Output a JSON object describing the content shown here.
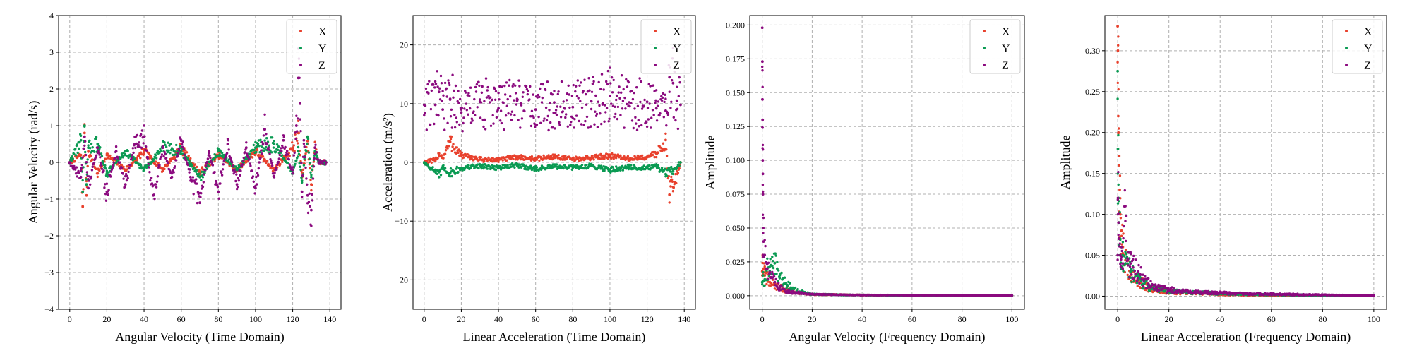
{
  "colors": {
    "X": "#e8412d",
    "Y": "#0a9a52",
    "Z": "#8b0a7f"
  },
  "chart_data": [
    {
      "type": "scatter",
      "xlabel": "Angular Velocity (Time Domain)",
      "ylabel": "Angular Velocity (rad/s)",
      "xlim": [
        -6,
        146
      ],
      "ylim": [
        -4,
        4
      ],
      "xticks": [
        0,
        20,
        40,
        60,
        80,
        100,
        120,
        140
      ],
      "xtick_labels": [
        "0",
        "20",
        "40",
        "60",
        "80",
        "100",
        "120",
        "140"
      ],
      "yticks": [
        -4,
        -3,
        -2,
        -1,
        0,
        1,
        2,
        3,
        4
      ],
      "ytick_labels": [
        "−4",
        "−3",
        "−2",
        "−1",
        "0",
        "1",
        "2",
        "3",
        "4"
      ],
      "grid": true,
      "legend": "top-right",
      "series": [
        {
          "name": "X",
          "color": "#e8412d",
          "x": [
            0,
            6,
            7,
            8,
            9,
            10,
            15,
            20,
            30,
            40,
            50,
            60,
            70,
            80,
            90,
            100,
            110,
            120,
            123,
            125,
            128,
            130,
            132,
            134,
            138
          ],
          "y": [
            0,
            0.2,
            -1.2,
            0.8,
            -0.9,
            0.3,
            -0.3,
            0.2,
            -0.2,
            0.3,
            -0.2,
            0.4,
            -0.3,
            0.2,
            -0.2,
            0.3,
            -0.2,
            0.4,
            0.8,
            -0.4,
            0.5,
            -0.6,
            0.4,
            0,
            0
          ]
        },
        {
          "name": "Y",
          "color": "#0a9a52",
          "x": [
            0,
            6,
            7,
            8,
            9,
            10,
            15,
            20,
            30,
            40,
            50,
            60,
            70,
            80,
            90,
            100,
            110,
            120,
            123,
            125,
            128,
            130,
            132,
            134,
            138
          ],
          "y": [
            0,
            0.6,
            -0.8,
            1.0,
            -0.6,
            0.4,
            0.5,
            -0.3,
            0.3,
            -0.2,
            0.4,
            0.3,
            -0.4,
            0.3,
            -0.2,
            0.4,
            0.5,
            -0.3,
            0.3,
            -0.5,
            0.7,
            -0.4,
            0.3,
            0,
            0
          ]
        },
        {
          "name": "Z",
          "color": "#8b0a7f",
          "x": [
            0,
            6,
            8,
            10,
            15,
            20,
            25,
            30,
            35,
            40,
            45,
            50,
            55,
            60,
            65,
            70,
            75,
            80,
            85,
            90,
            95,
            100,
            105,
            110,
            115,
            120,
            122,
            123,
            124,
            125,
            126,
            128,
            130,
            132,
            134,
            138
          ],
          "y": [
            0,
            -0.4,
            0.7,
            -0.7,
            0.4,
            -0.8,
            0.3,
            -0.6,
            0.5,
            0.7,
            -0.9,
            0.4,
            -0.4,
            0.6,
            -0.4,
            -1.1,
            0.3,
            -0.8,
            0.5,
            -0.6,
            0.4,
            -0.7,
            0.9,
            -0.4,
            0.6,
            -0.3,
            1.0,
            2.3,
            1.6,
            -0.8,
            0.6,
            -0.9,
            -1.3,
            0.4,
            0,
            0
          ]
        }
      ]
    },
    {
      "type": "scatter",
      "xlabel": "Linear Acceleration (Time Domain)",
      "ylabel": "Acceleration (m/s²)",
      "xlim": [
        -6,
        146
      ],
      "ylim": [
        -25,
        25
      ],
      "xticks": [
        0,
        20,
        40,
        60,
        80,
        100,
        120,
        140
      ],
      "xtick_labels": [
        "0",
        "20",
        "40",
        "60",
        "80",
        "100",
        "120",
        "140"
      ],
      "yticks": [
        -20,
        -10,
        0,
        10,
        20
      ],
      "ytick_labels": [
        "−20",
        "−10",
        "0",
        "10",
        "20"
      ],
      "grid": true,
      "legend": "top-right",
      "series": [
        {
          "name": "X",
          "color": "#e8412d",
          "x": [
            0,
            6,
            8,
            10,
            14,
            20,
            30,
            40,
            50,
            60,
            70,
            80,
            90,
            100,
            110,
            120,
            125,
            130,
            132,
            133,
            134,
            138
          ],
          "y": [
            0,
            0.3,
            1.5,
            0.8,
            3.5,
            1.2,
            0.5,
            0.4,
            0.9,
            0.6,
            1.0,
            0.5,
            0.8,
            1.2,
            0.6,
            0.9,
            1.5,
            3.8,
            -5.5,
            -3.0,
            -4.2,
            0
          ]
        },
        {
          "name": "Y",
          "color": "#0a9a52",
          "x": [
            0,
            6,
            8,
            10,
            14,
            20,
            30,
            40,
            50,
            60,
            70,
            80,
            90,
            100,
            110,
            120,
            125,
            130,
            132,
            134,
            138
          ],
          "y": [
            0,
            -1.5,
            -2.5,
            -0.8,
            -1.8,
            -1.0,
            -0.6,
            -0.9,
            -0.5,
            -1.1,
            -0.7,
            -0.9,
            -0.6,
            -1.2,
            -0.8,
            -1.0,
            -0.7,
            -2.0,
            -1.2,
            -1.5,
            0
          ]
        },
        {
          "name": "Z",
          "color": "#8b0a7f",
          "x": [
            0,
            6,
            8,
            10,
            14,
            20,
            30,
            40,
            50,
            60,
            70,
            80,
            90,
            100,
            110,
            120,
            125,
            130,
            132,
            134,
            136,
            138
          ],
          "y": [
            9.8,
            9.8,
            12,
            9.0,
            10.8,
            8.5,
            10.3,
            9.2,
            10.5,
            9.0,
            10.2,
            9.4,
            10.4,
            11.3,
            9.6,
            10.3,
            9.2,
            8.8,
            14.5,
            13.5,
            10.5,
            9.8
          ]
        }
      ]
    },
    {
      "type": "scatter",
      "xlabel": "Angular Velocity (Frequency Domain)",
      "ylabel": "Amplitude",
      "xlim": [
        -5,
        105
      ],
      "ylim": [
        -0.01,
        0.207
      ],
      "xticks": [
        0,
        20,
        40,
        60,
        80,
        100
      ],
      "xtick_labels": [
        "0",
        "20",
        "40",
        "60",
        "80",
        "100"
      ],
      "yticks": [
        0,
        0.025,
        0.05,
        0.075,
        0.1,
        0.125,
        0.15,
        0.175,
        0.2
      ],
      "ytick_labels": [
        "0.000",
        "0.025",
        "0.050",
        "0.075",
        "0.100",
        "0.125",
        "0.150",
        "0.175",
        "0.200"
      ],
      "grid": true,
      "legend": "top-right",
      "series": [
        {
          "name": "X",
          "color": "#e8412d",
          "x": [
            0,
            0.2,
            0.5,
            1,
            2,
            3,
            5,
            8,
            12,
            20,
            40,
            60,
            80,
            100
          ],
          "y": [
            0.018,
            0.03,
            0.02,
            0.015,
            0.012,
            0.01,
            0.008,
            0.005,
            0.003,
            0.001,
            0.0005,
            0.0003,
            0.0002,
            0.0001
          ]
        },
        {
          "name": "Y",
          "color": "#0a9a52",
          "x": [
            0,
            0.3,
            1,
            2,
            3,
            4,
            5,
            6,
            7,
            8,
            10,
            12,
            15,
            20,
            40,
            60,
            80,
            100
          ],
          "y": [
            0.01,
            0.015,
            0.012,
            0.02,
            0.018,
            0.022,
            0.024,
            0.02,
            0.015,
            0.012,
            0.008,
            0.005,
            0.003,
            0.001,
            0.0005,
            0.0003,
            0.0002,
            0.0001
          ]
        },
        {
          "name": "Z",
          "color": "#8b0a7f",
          "x": [
            0,
            0.05,
            0.1,
            0.15,
            0.2,
            0.25,
            0.3,
            0.4,
            0.5,
            1,
            1.5,
            2,
            3,
            4,
            5,
            7,
            10,
            15,
            20,
            40,
            60,
            80,
            100
          ],
          "y": [
            0.198,
            0.173,
            0.145,
            0.13,
            0.1,
            0.09,
            0.075,
            0.05,
            0.04,
            0.03,
            0.025,
            0.02,
            0.016,
            0.013,
            0.01,
            0.006,
            0.003,
            0.002,
            0.001,
            0.0005,
            0.0004,
            0.0003,
            0.0002
          ]
        }
      ]
    },
    {
      "type": "scatter",
      "xlabel": "Linear Acceleration (Frequency Domain)",
      "ylabel": "Amplitude",
      "xlim": [
        -5,
        105
      ],
      "ylim": [
        -0.016,
        0.343
      ],
      "xticks": [
        0,
        20,
        40,
        60,
        80,
        100
      ],
      "xtick_labels": [
        "0",
        "20",
        "40",
        "60",
        "80",
        "100"
      ],
      "yticks": [
        0,
        0.05,
        0.1,
        0.15,
        0.2,
        0.25,
        0.3
      ],
      "ytick_labels": [
        "0.00",
        "0.05",
        "0.10",
        "0.15",
        "0.20",
        "0.25",
        "0.30"
      ],
      "grid": true,
      "legend": "top-right",
      "series": [
        {
          "name": "X",
          "color": "#e8412d",
          "x": [
            0,
            0.1,
            0.2,
            0.3,
            0.5,
            0.8,
            1,
            1.5,
            2,
            3,
            5,
            8,
            12,
            20,
            40,
            60,
            80,
            100
          ],
          "y": [
            0.33,
            0.3,
            0.22,
            0.2,
            0.16,
            0.13,
            0.1,
            0.08,
            0.06,
            0.04,
            0.03,
            0.02,
            0.01,
            0.005,
            0.002,
            0.001,
            0.0008,
            0.0005
          ]
        },
        {
          "name": "Y",
          "color": "#0a9a52",
          "x": [
            0,
            0.1,
            0.3,
            0.5,
            1,
            1.5,
            2,
            3,
            5,
            8,
            12,
            20,
            40,
            60,
            80,
            100
          ],
          "y": [
            0.275,
            0.18,
            0.12,
            0.09,
            0.07,
            0.06,
            0.05,
            0.04,
            0.03,
            0.02,
            0.012,
            0.006,
            0.003,
            0.002,
            0.001,
            0.0005
          ]
        },
        {
          "name": "Z",
          "color": "#8b0a7f",
          "x": [
            0,
            0.1,
            0.3,
            0.5,
            1,
            1.5,
            2,
            3,
            4,
            5,
            6,
            8,
            10,
            12,
            15,
            20,
            25,
            30,
            40,
            50,
            60,
            70,
            80,
            90,
            100
          ],
          "y": [
            0.05,
            0.12,
            0.09,
            0.07,
            0.05,
            0.06,
            0.04,
            0.11,
            0.045,
            0.04,
            0.035,
            0.03,
            0.02,
            0.015,
            0.01,
            0.008,
            0.006,
            0.005,
            0.004,
            0.003,
            0.0025,
            0.002,
            0.0015,
            0.001,
            0.0008
          ]
        }
      ]
    }
  ]
}
